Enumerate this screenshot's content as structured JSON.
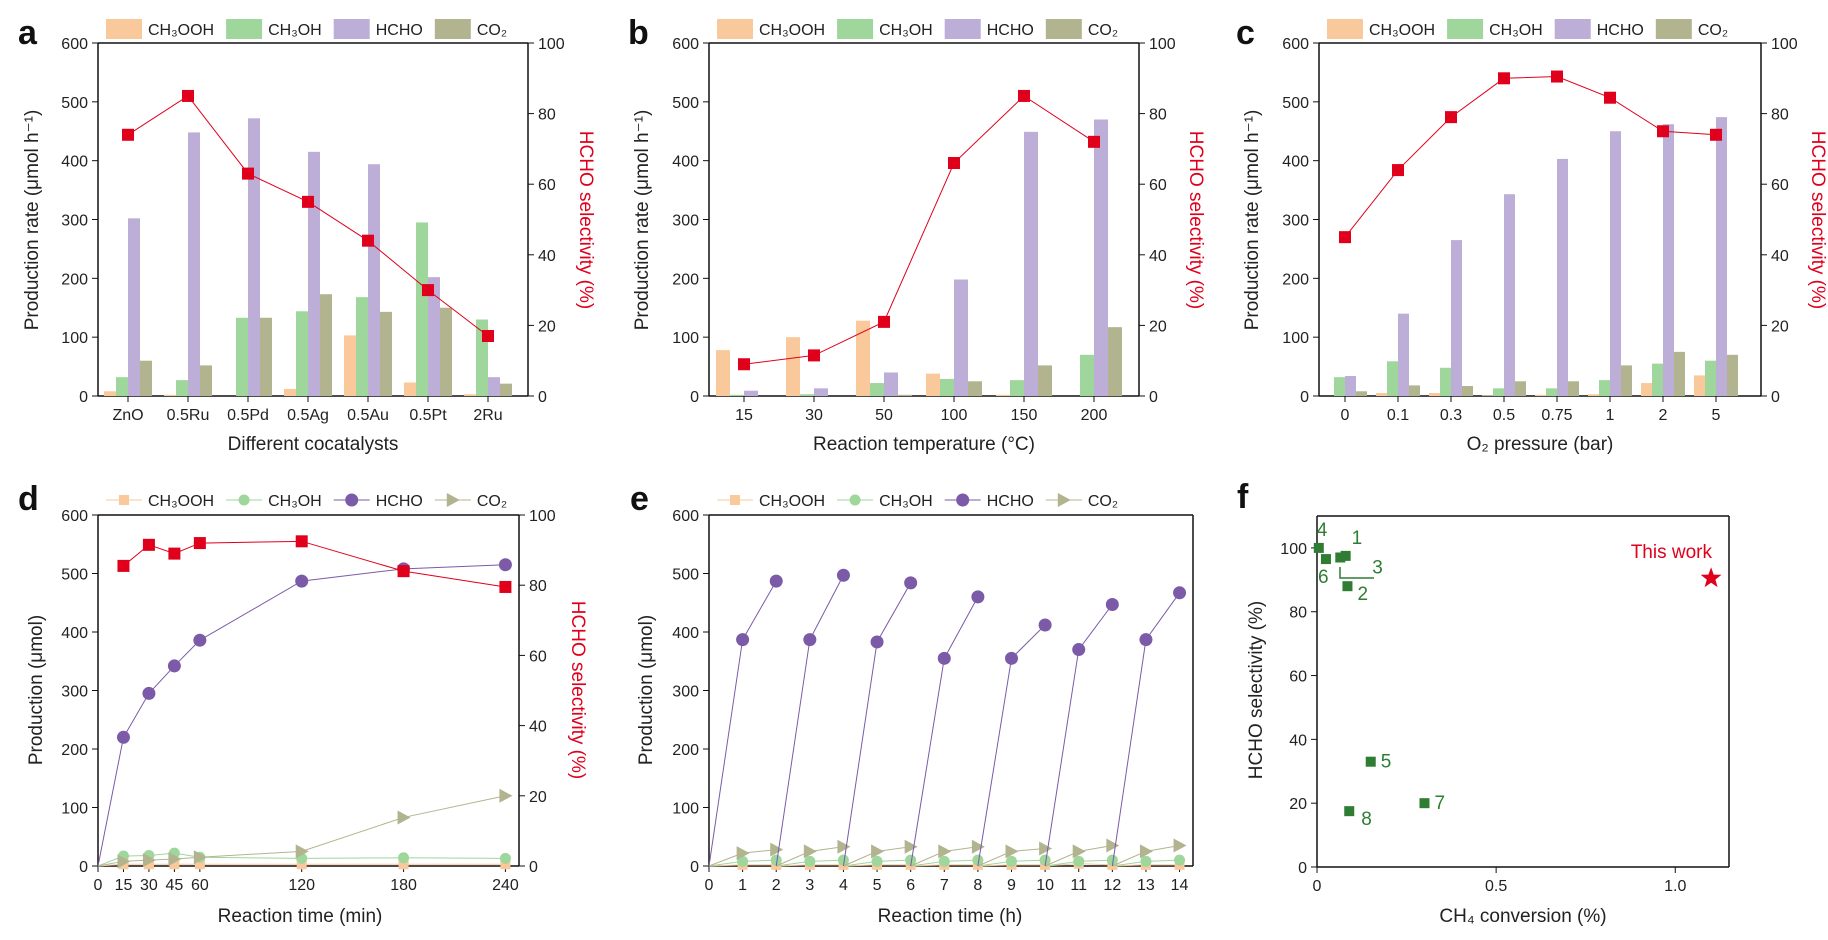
{
  "colors": {
    "CH3OOH": "#f9c89b",
    "CH3OH": "#9fd69c",
    "HCHO": "#bdaed8",
    "CO2": "#b2b48f",
    "selectivity": "#e0001b",
    "hcho_line": "#7b5aa8",
    "literature": "#2e7d32"
  },
  "legend_labels": [
    "CH₃OOH",
    "CH₃OH",
    "HCHO",
    "CO₂"
  ],
  "chart_data": [
    {
      "panel": "a",
      "type": "bar",
      "xlabel": "Different cocatalysts",
      "ylabel": "Production rate (μmol h⁻¹)",
      "y2label": "HCHO selectivity (%)",
      "ylim": [
        0,
        600
      ],
      "y2lim": [
        0,
        100
      ],
      "yticks": [
        0,
        100,
        200,
        300,
        400,
        500,
        600
      ],
      "y2ticks": [
        0,
        20,
        40,
        60,
        80,
        100
      ],
      "categories": [
        "ZnO",
        "0.5Ru",
        "0.5Pd",
        "0.5Ag",
        "0.5Au",
        "0.5Pt",
        "2Ru"
      ],
      "series": [
        {
          "name": "CH₃OOH",
          "values": [
            8,
            2,
            0,
            12,
            103,
            23,
            3
          ]
        },
        {
          "name": "CH₃OH",
          "values": [
            32,
            27,
            133,
            144,
            168,
            295,
            130
          ]
        },
        {
          "name": "HCHO",
          "values": [
            302,
            448,
            472,
            415,
            394,
            202,
            32
          ]
        },
        {
          "name": "CO₂",
          "values": [
            60,
            52,
            133,
            173,
            143,
            150,
            21
          ]
        }
      ],
      "selectivity": [
        74,
        85,
        63,
        55,
        44,
        30,
        17
      ]
    },
    {
      "panel": "b",
      "type": "bar",
      "xlabel": "Reaction temperature (°C)",
      "ylabel": "Production rate (μmol h⁻¹)",
      "y2label": "HCHO selectivity (%)",
      "ylim": [
        0,
        600
      ],
      "y2lim": [
        0,
        100
      ],
      "yticks": [
        0,
        100,
        200,
        300,
        400,
        500,
        600
      ],
      "y2ticks": [
        0,
        20,
        40,
        60,
        80,
        100
      ],
      "categories": [
        "15",
        "30",
        "50",
        "100",
        "150",
        "200"
      ],
      "series": [
        {
          "name": "CH₃OOH",
          "values": [
            78,
            100,
            128,
            38,
            2,
            0
          ]
        },
        {
          "name": "CH₃OH",
          "values": [
            2,
            3,
            22,
            29,
            27,
            70
          ]
        },
        {
          "name": "HCHO",
          "values": [
            9,
            13,
            40,
            198,
            449,
            470
          ]
        },
        {
          "name": "CO₂",
          "values": [
            0,
            0,
            2,
            25,
            52,
            117
          ]
        }
      ],
      "selectivity": [
        9,
        11.5,
        21,
        66,
        85,
        72
      ]
    },
    {
      "panel": "c",
      "type": "bar",
      "xlabel": "O₂ pressure (bar)",
      "ylabel": "Production rate (μmol h⁻¹)",
      "y2label": "HCHO selectivity (%)",
      "ylim": [
        0,
        600
      ],
      "y2lim": [
        0,
        100
      ],
      "yticks": [
        0,
        100,
        200,
        300,
        400,
        500,
        600
      ],
      "y2ticks": [
        0,
        20,
        40,
        60,
        80,
        100
      ],
      "categories": [
        "0",
        "0.1",
        "0.3",
        "0.5",
        "0.75",
        "1",
        "2",
        "5"
      ],
      "series": [
        {
          "name": "CH₃OOH",
          "values": [
            0,
            5,
            5,
            1,
            2,
            3,
            22,
            35
          ]
        },
        {
          "name": "CH₃OH",
          "values": [
            32,
            59,
            48,
            13,
            13,
            27,
            55,
            60
          ]
        },
        {
          "name": "HCHO",
          "values": [
            34,
            140,
            265,
            343,
            403,
            450,
            462,
            474
          ]
        },
        {
          "name": "CO₂",
          "values": [
            8,
            18,
            17,
            25,
            25,
            52,
            75,
            70
          ]
        }
      ],
      "selectivity": [
        45,
        64,
        79,
        90,
        90.5,
        84.5,
        75,
        74
      ]
    },
    {
      "panel": "d",
      "type": "line",
      "xlabel": "Reaction time (min)",
      "ylabel": "Production (μmol)",
      "y2label": "HCHO selectivity (%)",
      "xlim": [
        0,
        248
      ],
      "ylim": [
        0,
        600
      ],
      "y2lim": [
        0,
        100
      ],
      "xticks": [
        0,
        15,
        30,
        45,
        60,
        120,
        180,
        240
      ],
      "yticks": [
        0,
        100,
        200,
        300,
        400,
        500,
        600
      ],
      "y2ticks": [
        0,
        20,
        40,
        60,
        80,
        100
      ],
      "x": [
        0,
        15,
        30,
        45,
        60,
        120,
        180,
        240
      ],
      "series": [
        {
          "name": "CH₃OOH",
          "values": [
            0,
            3,
            3,
            3,
            3,
            3,
            3,
            3
          ]
        },
        {
          "name": "CH₃OH",
          "values": [
            0,
            17,
            18,
            22,
            15,
            13,
            14,
            13
          ]
        },
        {
          "name": "HCHO",
          "values": [
            0,
            220,
            295,
            342,
            386,
            487,
            508,
            515
          ]
        },
        {
          "name": "CO₂",
          "values": [
            0,
            8,
            10,
            12,
            15,
            25,
            83,
            120
          ]
        }
      ],
      "selectivity_x": [
        15,
        30,
        45,
        60,
        120,
        180,
        240
      ],
      "selectivity": [
        85.5,
        91.5,
        89,
        92,
        92.5,
        84,
        79.5
      ]
    },
    {
      "panel": "e",
      "type": "line",
      "xlabel": "Reaction time (h)",
      "ylabel": "Production (μmol)",
      "xlim": [
        0,
        14.4
      ],
      "ylim": [
        0,
        600
      ],
      "xticks": [
        0,
        1,
        2,
        3,
        4,
        5,
        6,
        7,
        8,
        9,
        10,
        11,
        12,
        13,
        14
      ],
      "yticks": [
        0,
        100,
        200,
        300,
        400,
        500,
        600
      ],
      "cycles": [
        {
          "x": [
            0,
            1,
            2
          ],
          "HCHO": [
            0,
            387,
            487
          ],
          "CO₂": [
            0,
            22,
            28
          ],
          "CH₃OH": [
            0,
            8,
            10
          ],
          "CH₃OOH": [
            0,
            2,
            2
          ]
        },
        {
          "x": [
            2,
            3,
            4
          ],
          "HCHO": [
            0,
            387,
            497
          ],
          "CO₂": [
            0,
            25,
            33
          ],
          "CH₃OH": [
            0,
            8,
            10
          ],
          "CH₃OOH": [
            0,
            2,
            2
          ]
        },
        {
          "x": [
            4,
            5,
            6
          ],
          "HCHO": [
            0,
            383,
            484
          ],
          "CO₂": [
            0,
            25,
            33
          ],
          "CH₃OH": [
            0,
            8,
            10
          ],
          "CH₃OOH": [
            0,
            2,
            2
          ]
        },
        {
          "x": [
            6,
            7,
            8
          ],
          "HCHO": [
            0,
            355,
            460
          ],
          "CO₂": [
            0,
            25,
            33
          ],
          "CH₃OH": [
            0,
            8,
            10
          ],
          "CH₃OOH": [
            0,
            2,
            2
          ]
        },
        {
          "x": [
            8,
            9,
            10
          ],
          "HCHO": [
            0,
            355,
            412
          ],
          "CO₂": [
            0,
            25,
            30
          ],
          "CH₃OH": [
            0,
            8,
            10
          ],
          "CH₃OOH": [
            0,
            2,
            2
          ]
        },
        {
          "x": [
            10,
            11,
            12
          ],
          "HCHO": [
            0,
            370,
            447
          ],
          "CO₂": [
            0,
            25,
            35
          ],
          "CH₃OH": [
            0,
            8,
            10
          ],
          "CH₃OOH": [
            0,
            4,
            2
          ]
        },
        {
          "x": [
            12,
            13,
            14
          ],
          "HCHO": [
            0,
            387,
            467
          ],
          "CO₂": [
            0,
            25,
            35
          ],
          "CH₃OH": [
            0,
            8,
            10
          ],
          "CH₃OOH": [
            0,
            2,
            2
          ]
        }
      ]
    },
    {
      "panel": "f",
      "type": "scatter",
      "xlabel": "CH₄ conversion (%)",
      "ylabel": "HCHO selectivity (%)",
      "xlim": [
        0,
        1.15
      ],
      "ylim": [
        0,
        110
      ],
      "xticks": [
        0,
        0.5,
        1.0
      ],
      "xticklabels": [
        "0",
        "0.5",
        "1.0"
      ],
      "yticks": [
        0,
        20,
        40,
        60,
        80,
        100
      ],
      "points": [
        {
          "label": "1",
          "x": 0.08,
          "y": 97.5
        },
        {
          "label": "2",
          "x": 0.085,
          "y": 88
        },
        {
          "label": "3",
          "x": 0.065,
          "y": 97
        },
        {
          "label": "4",
          "x": 0.005,
          "y": 100
        },
        {
          "label": "5",
          "x": 0.15,
          "y": 33
        },
        {
          "label": "6",
          "x": 0.025,
          "y": 96.5
        },
        {
          "label": "7",
          "x": 0.3,
          "y": 20
        },
        {
          "label": "8",
          "x": 0.09,
          "y": 17.5
        }
      ],
      "highlight": {
        "label": "This work",
        "x": 1.1,
        "y": 90.5
      }
    }
  ]
}
